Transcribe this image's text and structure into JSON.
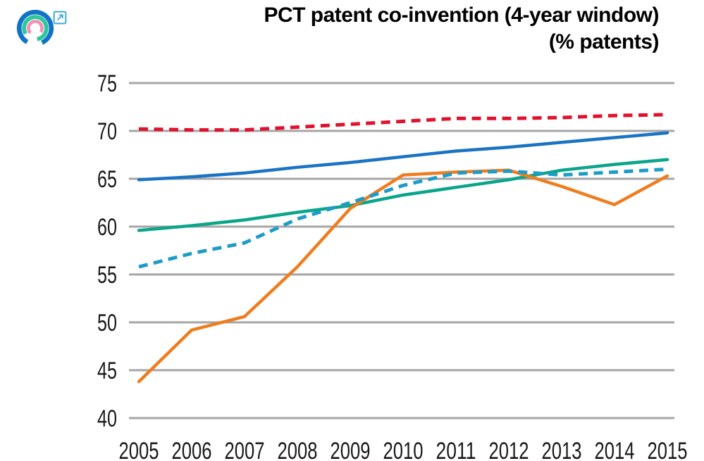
{
  "header": {
    "logo": {
      "icon": "concentric-arcs-logo",
      "outer_color": "#1273c6",
      "middle_color": "#2bc79d",
      "inner_color": "#f391b4",
      "external_link_color": "#3fa8dc"
    },
    "title_line1": "PCT patent co-invention (4-year window)",
    "title_line2": "(% patents)"
  },
  "chart_data": {
    "type": "line",
    "title": "PCT patent co-invention (4-year window) (% patents)",
    "xlabel": "",
    "ylabel": "",
    "x": [
      2005,
      2006,
      2007,
      2008,
      2009,
      2010,
      2011,
      2012,
      2013,
      2014,
      2015
    ],
    "ylim": [
      40,
      75
    ],
    "yticks": [
      40,
      45,
      50,
      55,
      60,
      65,
      70,
      75
    ],
    "grid": true,
    "legend_position": "none",
    "series": [
      {
        "name": "blue-solid-line",
        "style": "solid",
        "color": "#1a73c4",
        "values": [
          64.9,
          65.2,
          65.6,
          66.2,
          66.7,
          67.3,
          67.9,
          68.3,
          68.8,
          69.3,
          69.8
        ]
      },
      {
        "name": "teal-solid-line",
        "style": "solid",
        "color": "#0aa58a",
        "values": [
          59.6,
          60.1,
          60.7,
          61.5,
          62.2,
          63.3,
          64.1,
          64.9,
          65.9,
          66.5,
          67.0
        ]
      },
      {
        "name": "orange-solid-line",
        "style": "solid",
        "color": "#ef7d1f",
        "values": [
          43.8,
          49.2,
          50.6,
          55.8,
          61.9,
          65.4,
          65.7,
          65.9,
          64.2,
          62.3,
          65.3
        ]
      },
      {
        "name": "teal-dashed-line",
        "style": "dashed",
        "color": "#1e9cc8",
        "values": [
          55.8,
          57.2,
          58.3,
          60.8,
          62.5,
          64.3,
          65.6,
          65.8,
          65.4,
          65.7,
          66.0
        ]
      },
      {
        "name": "red-dashed-line",
        "style": "dashed",
        "color": "#e0112d",
        "values": [
          70.2,
          70.1,
          70.1,
          70.4,
          70.7,
          71.0,
          71.3,
          71.3,
          71.4,
          71.6,
          71.7
        ]
      }
    ]
  },
  "colors": {
    "gridline": "#a6a6a6",
    "tick_text": "#1a1a1a",
    "background": "#ffffff"
  }
}
